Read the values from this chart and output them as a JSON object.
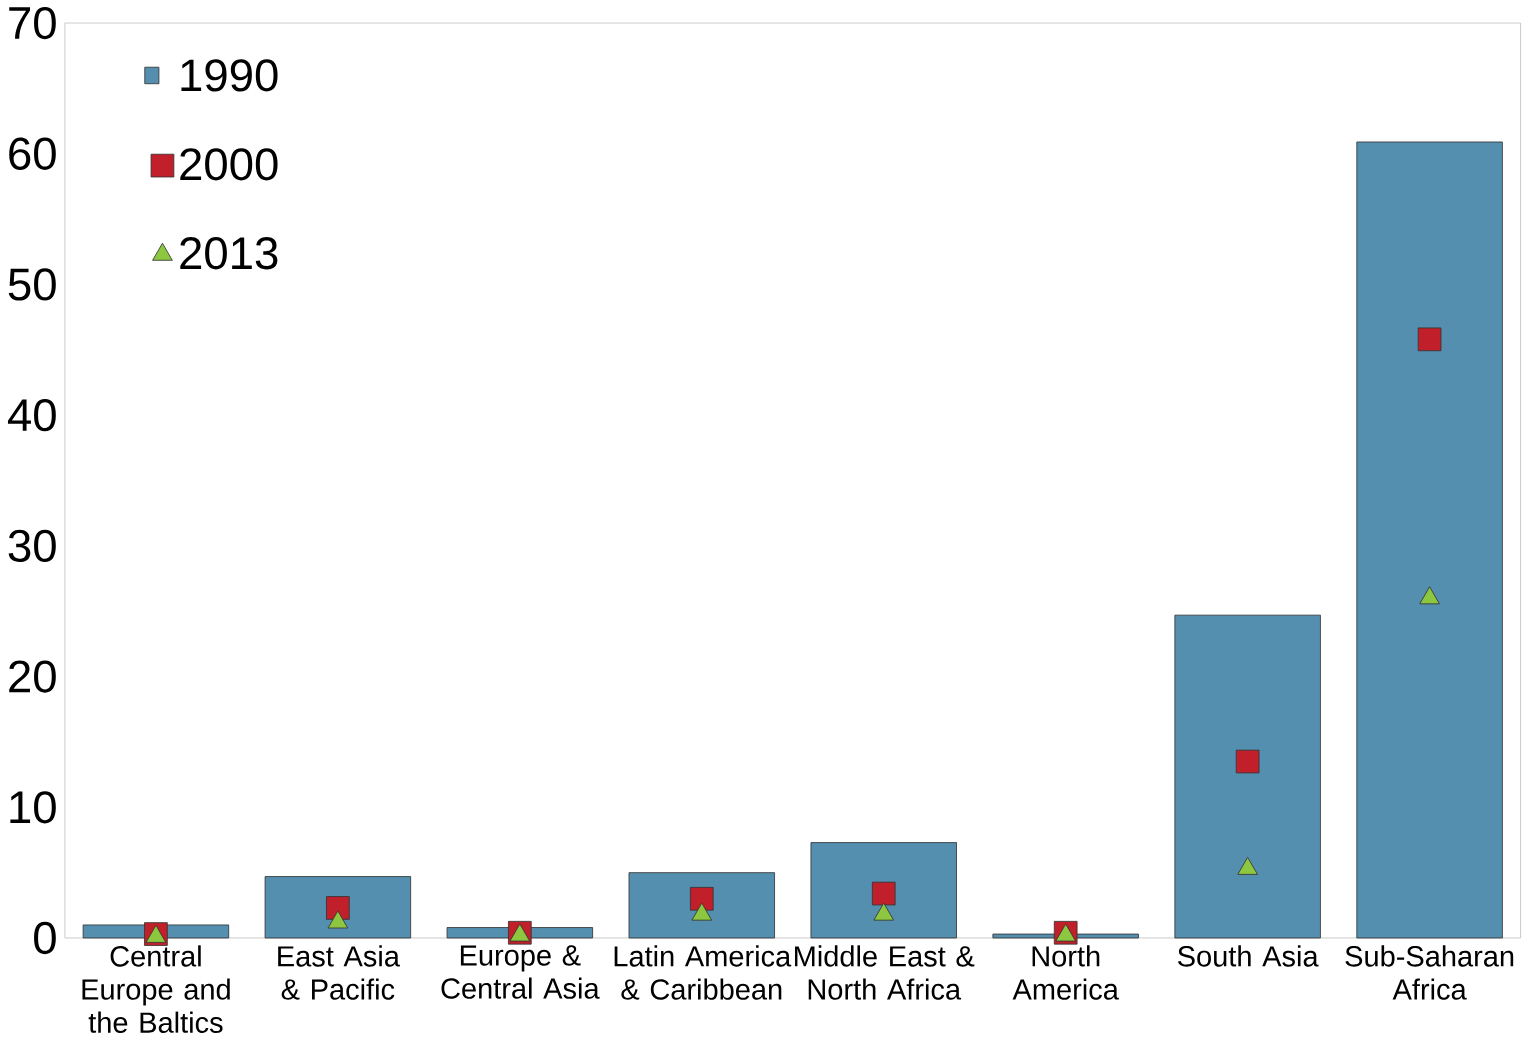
{
  "chart_data": {
    "type": "bar",
    "categories": [
      "Central Europe and the Baltics",
      "East Asia & Pacific",
      "Europe & Central Asia",
      "Latin America & Caribbean",
      "Middle East & North Africa",
      "North America",
      "South Asia",
      "Sub-Saharan Africa"
    ],
    "series": [
      {
        "name": "1990",
        "color": "#548fb0",
        "values": [
          1.0,
          4.7,
          0.8,
          5.0,
          7.3,
          0.3,
          24.7,
          60.9
        ]
      },
      {
        "name": "2000",
        "type": "scatter",
        "marker": "square",
        "color": "#c1202a",
        "values": [
          0.3,
          2.3,
          0.4,
          3.0,
          3.4,
          0.4,
          13.5,
          45.8
        ]
      },
      {
        "name": "2013",
        "type": "scatter",
        "marker": "triangle",
        "color": "#8dc63f",
        "values": [
          0.1,
          1.2,
          0.2,
          1.8,
          1.8,
          0.2,
          5.3,
          26.0
        ]
      }
    ],
    "ylim": [
      0,
      70
    ],
    "yticks": [
      0,
      10,
      20,
      30,
      40,
      50,
      60,
      70
    ],
    "legend": "top left",
    "grid": false
  }
}
